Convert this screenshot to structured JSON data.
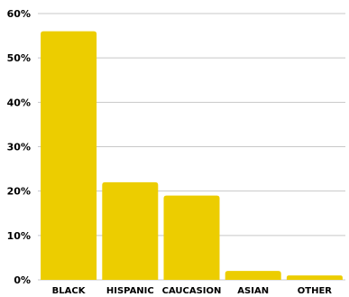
{
  "chart_data": {
    "type": "bar",
    "categories": [
      "BLACK",
      "HISPANIC",
      "CAUCASION",
      "ASIAN",
      "OTHER"
    ],
    "values": [
      56,
      22,
      19,
      2,
      1
    ],
    "ylim": [
      0,
      60
    ],
    "y_ticks": [
      0,
      10,
      20,
      30,
      40,
      50,
      60
    ],
    "y_tick_labels": [
      "0%",
      "10%",
      "20%",
      "30%",
      "40%",
      "50%",
      "60%"
    ],
    "grid": true,
    "bar_color": "#eccd00"
  }
}
